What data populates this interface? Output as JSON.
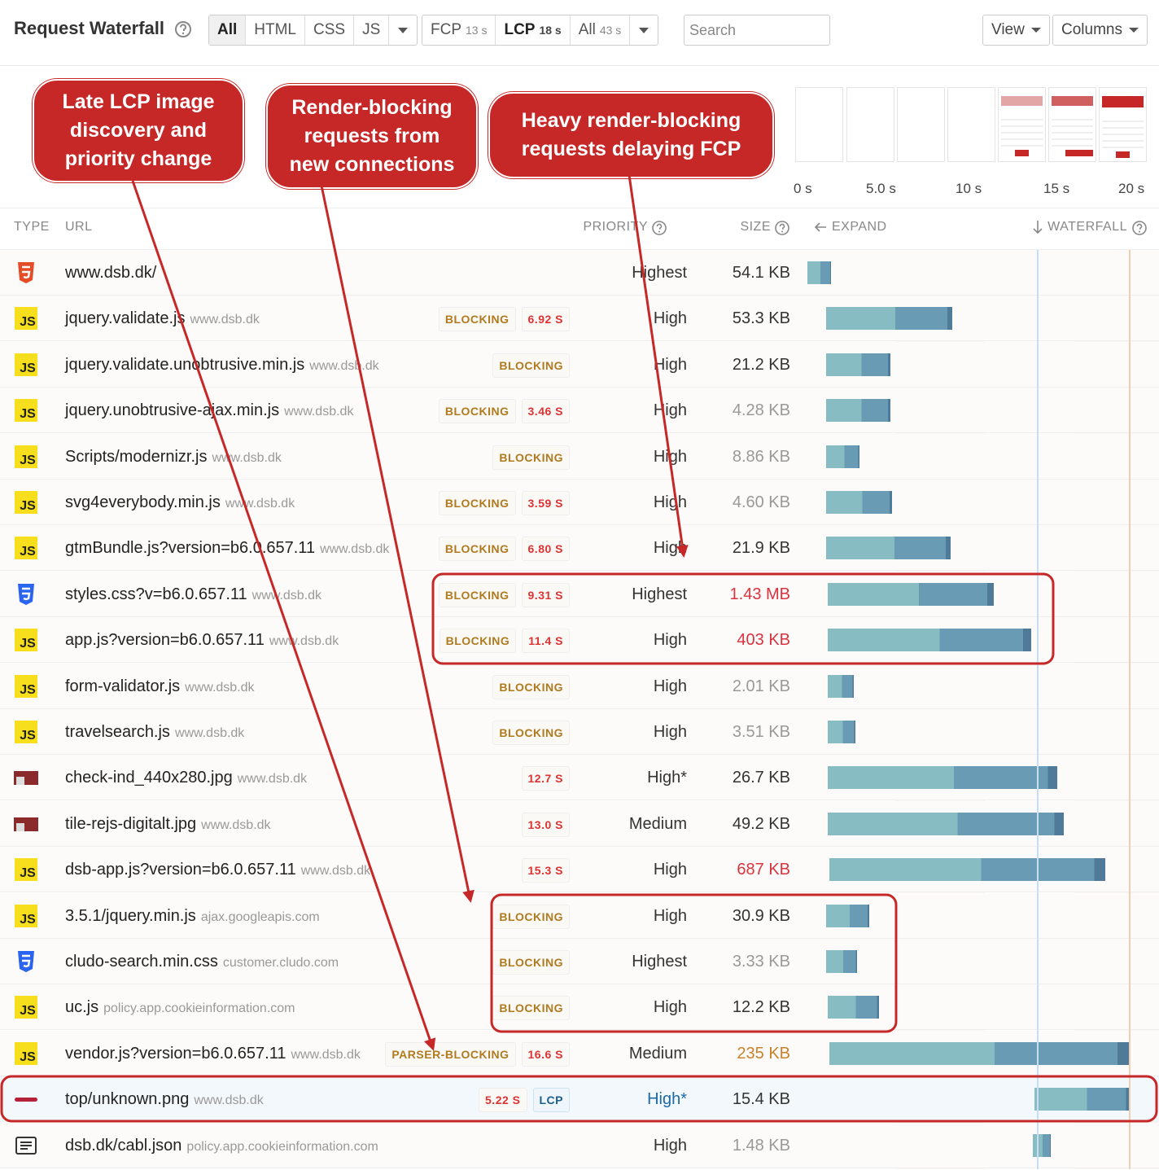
{
  "toolbar": {
    "title": "Request Waterfall",
    "filters": [
      "All",
      "HTML",
      "CSS",
      "JS"
    ],
    "metrics": [
      {
        "label": "FCP",
        "value": "13 s"
      },
      {
        "label": "LCP",
        "value": "18 s"
      },
      {
        "label": "All",
        "value": "43 s"
      }
    ],
    "search": "Search",
    "buttons": [
      "View",
      "Columns"
    ]
  },
  "callouts": [
    [
      "Late LCP image",
      "discovery and",
      "priority change"
    ],
    [
      "Render-blocking",
      "requests from",
      "new connections"
    ],
    [
      "Heavy render-blocking",
      "requests delaying FCP"
    ]
  ],
  "filmstrip_times": [
    "0 s",
    "5.0 s",
    "10 s",
    "15 s",
    "20 s"
  ],
  "columns": {
    "type": "TYPE",
    "url": "URL",
    "priority": "PRIORITY",
    "size": "SIZE",
    "expand": "EXPAND",
    "waterfall": "WATERFALL"
  },
  "rows": [
    {
      "type": "html",
      "url": "www.dsb.dk/",
      "host": null,
      "badges": [],
      "priority": "Highest",
      "size": "54.1 KB",
      "size_color": "normal",
      "timing": [
        0.25,
        1.7
      ]
    },
    {
      "type": "js",
      "url": "jquery.validate.js",
      "host": "www.dsb.dk",
      "badges": [
        {
          "text": "BLOCKING",
          "kind": "blocking"
        },
        {
          "text": "6.92 S",
          "kind": "time"
        }
      ],
      "priority": "High",
      "size": "53.3 KB",
      "size_color": "normal",
      "timing": [
        1.4,
        9.1
      ]
    },
    {
      "type": "js",
      "url": "jquery.validate.unobtrusive.min.js",
      "host": "www.dsb.dk",
      "badges": [
        {
          "text": "BLOCKING",
          "kind": "blocking"
        }
      ],
      "priority": "High",
      "size": "21.2 KB",
      "size_color": "normal",
      "timing": [
        1.4,
        5.3
      ]
    },
    {
      "type": "js",
      "url": "jquery.unobtrusive-ajax.min.js",
      "host": "www.dsb.dk",
      "badges": [
        {
          "text": "BLOCKING",
          "kind": "blocking"
        },
        {
          "text": "3.46 S",
          "kind": "time"
        }
      ],
      "priority": "High",
      "size": "4.28 KB",
      "size_color": "muted",
      "timing": [
        1.4,
        5.3
      ]
    },
    {
      "type": "js",
      "url": "Scripts/modernizr.js",
      "host": "www.dsb.dk",
      "badges": [
        {
          "text": "BLOCKING",
          "kind": "blocking"
        }
      ],
      "priority": "High",
      "size": "8.86 KB",
      "size_color": "muted",
      "timing": [
        1.4,
        3.4
      ]
    },
    {
      "type": "js",
      "url": "svg4everybody.min.js",
      "host": "www.dsb.dk",
      "badges": [
        {
          "text": "BLOCKING",
          "kind": "blocking"
        },
        {
          "text": "3.59 S",
          "kind": "time"
        }
      ],
      "priority": "High",
      "size": "4.60 KB",
      "size_color": "muted",
      "timing": [
        1.4,
        5.4
      ]
    },
    {
      "type": "js",
      "url": "gtmBundle.js?version=b6.0.657.11",
      "host": "www.dsb.dk",
      "badges": [
        {
          "text": "BLOCKING",
          "kind": "blocking"
        },
        {
          "text": "6.80 S",
          "kind": "time"
        }
      ],
      "priority": "High",
      "size": "21.9 KB",
      "size_color": "normal",
      "timing": [
        1.4,
        9.0
      ]
    },
    {
      "type": "css",
      "url": "styles.css?v=b6.0.657.11",
      "host": "www.dsb.dk",
      "badges": [
        {
          "text": "BLOCKING",
          "kind": "blocking"
        },
        {
          "text": "9.31 S",
          "kind": "time"
        }
      ],
      "priority": "Highest",
      "size": "1.43 MB",
      "size_color": "red",
      "timing": [
        1.5,
        11.6
      ]
    },
    {
      "type": "js",
      "url": "app.js?version=b6.0.657.11",
      "host": "www.dsb.dk",
      "badges": [
        {
          "text": "BLOCKING",
          "kind": "blocking"
        },
        {
          "text": "11.4 S",
          "kind": "time"
        }
      ],
      "priority": "High",
      "size": "403 KB",
      "size_color": "red",
      "timing": [
        1.5,
        13.9
      ]
    },
    {
      "type": "js",
      "url": "form-validator.js",
      "host": "www.dsb.dk",
      "badges": [
        {
          "text": "BLOCKING",
          "kind": "blocking"
        }
      ],
      "priority": "High",
      "size": "2.01 KB",
      "size_color": "muted",
      "timing": [
        1.5,
        3.1
      ]
    },
    {
      "type": "js",
      "url": "travelsearch.js",
      "host": "www.dsb.dk",
      "badges": [
        {
          "text": "BLOCKING",
          "kind": "blocking"
        }
      ],
      "priority": "High",
      "size": "3.51 KB",
      "size_color": "muted",
      "timing": [
        1.5,
        3.2
      ]
    },
    {
      "type": "img",
      "url": "check-ind_440x280.jpg",
      "host": "www.dsb.dk",
      "badges": [
        {
          "text": "12.7 S",
          "kind": "time"
        }
      ],
      "priority": "High*",
      "size": "26.7 KB",
      "size_color": "normal",
      "timing": [
        1.5,
        15.5
      ]
    },
    {
      "type": "img",
      "url": "tile-rejs-digitalt.jpg",
      "host": "www.dsb.dk",
      "badges": [
        {
          "text": "13.0 S",
          "kind": "time"
        }
      ],
      "priority": "Medium",
      "size": "49.2 KB",
      "size_color": "normal",
      "timing": [
        1.5,
        15.9
      ]
    },
    {
      "type": "js",
      "url": "dsb-app.js?version=b6.0.657.11",
      "host": "www.dsb.dk",
      "badges": [
        {
          "text": "15.3 S",
          "kind": "time"
        }
      ],
      "priority": "High",
      "size": "687 KB",
      "size_color": "red",
      "timing": [
        1.6,
        18.4
      ]
    },
    {
      "type": "js",
      "url": "3.5.1/jquery.min.js",
      "host": "ajax.googleapis.com",
      "badges": [
        {
          "text": "BLOCKING",
          "kind": "blocking"
        }
      ],
      "priority": "High",
      "size": "30.9 KB",
      "size_color": "normal",
      "timing": [
        1.4,
        4.0
      ]
    },
    {
      "type": "css",
      "url": "cludo-search.min.css",
      "host": "customer.cludo.com",
      "badges": [
        {
          "text": "BLOCKING",
          "kind": "blocking"
        }
      ],
      "priority": "Highest",
      "size": "3.33 KB",
      "size_color": "muted",
      "timing": [
        1.4,
        3.3
      ]
    },
    {
      "type": "js",
      "url": "uc.js",
      "host": "policy.app.cookieinformation.com",
      "badges": [
        {
          "text": "BLOCKING",
          "kind": "blocking"
        }
      ],
      "priority": "High",
      "size": "12.2 KB",
      "size_color": "normal",
      "timing": [
        1.5,
        4.6
      ]
    },
    {
      "type": "js",
      "url": "vendor.js?version=b6.0.657.11",
      "host": "www.dsb.dk",
      "badges": [
        {
          "text": "PARSER-BLOCKING",
          "kind": "blocking"
        },
        {
          "text": "16.6 S",
          "kind": "time"
        }
      ],
      "priority": "Medium",
      "size": "235 KB",
      "size_color": "orange",
      "timing": [
        1.6,
        19.9
      ]
    },
    {
      "type": "lcp",
      "url": "top/unknown.png",
      "host": "www.dsb.dk",
      "badges": [
        {
          "text": "5.22 S",
          "kind": "time"
        },
        {
          "text": "LCP",
          "kind": "lcp"
        }
      ],
      "priority": "High*",
      "size": "15.4 KB",
      "size_color": "normal",
      "timing": [
        14.1,
        19.9
      ],
      "highlight": true
    },
    {
      "type": "json",
      "url": "dsb.dk/cabl.json",
      "host": "policy.app.cookieinformation.com",
      "badges": [],
      "priority": "High",
      "size": "1.48 KB",
      "size_color": "muted",
      "timing": [
        14.0,
        15.1
      ]
    }
  ]
}
